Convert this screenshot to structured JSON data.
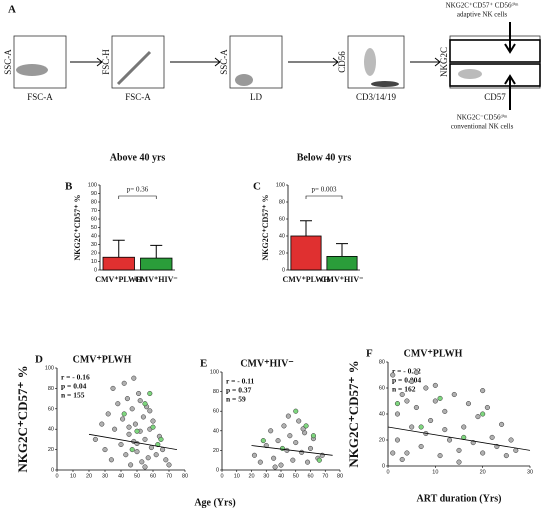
{
  "gating": {
    "label": "A",
    "plots": [
      {
        "x_label": "FSC-A",
        "y_label": "SSC-A"
      },
      {
        "x_label": "FSC-A",
        "y_label": "FSC-H"
      },
      {
        "x_label": "LD",
        "y_label": "SSC-A"
      },
      {
        "x_label": "CD3/14/19",
        "y_label": "CD56"
      },
      {
        "x_label": "CD57",
        "y_label": "NKG2C"
      }
    ],
    "annotations": [
      {
        "line1": "NKG2C⁺CD57⁺ CD56ᵈⁱᵐ",
        "line2": "adaptive NK cells"
      },
      {
        "line1": "NKG2C⁻CD56ᵈⁱᵐ",
        "line2": "conventional NK cells"
      }
    ]
  },
  "chart_data": [
    {
      "type": "bar",
      "label": "B",
      "title": "Above 40 yrs",
      "y_label": "NKG2C⁺CD57⁺ %",
      "categories": [
        "CMV⁺PLWH",
        "CMV⁺HIV⁻"
      ],
      "values": [
        15,
        14
      ],
      "errors": [
        20,
        15
      ],
      "colors": [
        "#e03030",
        "#2a9d3a"
      ],
      "annotation": "p= 0.36",
      "ylim": [
        0,
        100
      ],
      "yticks": [
        0,
        10,
        20,
        30,
        40,
        50,
        60,
        70,
        80,
        90,
        100
      ]
    },
    {
      "type": "bar",
      "label": "C",
      "title": "Below 40 yrs",
      "y_label": "NKG2C⁺CD57⁺ %",
      "categories": [
        "CMV⁺PLWH",
        "CMV⁺HIV⁻"
      ],
      "values": [
        40,
        16
      ],
      "errors": [
        18,
        15
      ],
      "colors": [
        "#e03030",
        "#2a9d3a"
      ],
      "annotation": "p= 0.003",
      "ylim": [
        0,
        100
      ],
      "yticks": [
        0,
        20,
        40,
        60,
        80,
        100
      ]
    },
    {
      "type": "scatter",
      "label": "D",
      "title": "CMV⁺PLWH",
      "y_label": "NKG2C⁺CD57⁺ %",
      "x_label": "Age (Yrs)",
      "annotations": [
        "r = - 0.16",
        "p = 0.04",
        "n = 155"
      ],
      "series": [
        {
          "color": "#b0b0b0",
          "x": [
            24,
            28,
            30,
            32,
            34,
            36,
            38,
            40,
            41,
            43,
            44,
            45,
            46,
            47,
            48,
            49,
            50,
            51,
            52,
            53,
            54,
            55,
            56,
            57,
            58,
            59,
            60,
            62,
            64,
            66,
            68,
            70,
            35,
            42,
            48,
            52,
            55,
            58,
            45,
            50
          ],
          "y": [
            30,
            45,
            20,
            55,
            10,
            40,
            65,
            25,
            50,
            15,
            70,
            35,
            5,
            60,
            28,
            45,
            18,
            75,
            38,
            8,
            52,
            30,
            62,
            12,
            40,
            22,
            48,
            15,
            33,
            20,
            10,
            5,
            80,
            85,
            90,
            68,
            3,
            58,
            42,
            26
          ]
        },
        {
          "color": "#7ed67e",
          "x": [
            42,
            50,
            55,
            60,
            63,
            65,
            58,
            47
          ],
          "y": [
            55,
            38,
            65,
            42,
            25,
            30,
            75,
            20
          ]
        }
      ],
      "trend": {
        "x": [
          20,
          75
        ],
        "y": [
          35,
          20
        ]
      },
      "xlim": [
        0,
        80
      ],
      "xticks": [
        0,
        10,
        20,
        30,
        40,
        50,
        60,
        70,
        80
      ],
      "ylim": [
        0,
        100
      ],
      "yticks": [
        0,
        20,
        40,
        60,
        80,
        100
      ]
    },
    {
      "type": "scatter",
      "label": "E",
      "title": "CMV⁺HIV⁻",
      "annotations": [
        "r = - 0.11",
        "p = 0.37",
        "n = 59"
      ],
      "series": [
        {
          "color": "#b0b0b0",
          "x": [
            22,
            26,
            30,
            33,
            35,
            38,
            40,
            42,
            44,
            46,
            48,
            50,
            52,
            54,
            56,
            58,
            60,
            62,
            65,
            68,
            36,
            45,
            55
          ],
          "y": [
            15,
            8,
            25,
            40,
            12,
            30,
            5,
            45,
            20,
            35,
            10,
            28,
            50,
            18,
            38,
            8,
            22,
            32,
            12,
            15,
            3,
            55,
            42
          ]
        },
        {
          "color": "#7ed67e",
          "x": [
            28,
            41,
            50,
            57,
            62,
            66
          ],
          "y": [
            30,
            22,
            60,
            45,
            35,
            10
          ]
        }
      ],
      "trend": {
        "x": [
          20,
          75
        ],
        "y": [
          25,
          15
        ]
      },
      "xlim": [
        0,
        80
      ],
      "xticks": [
        0,
        10,
        20,
        30,
        40,
        50,
        60,
        70,
        80
      ],
      "ylim": [
        0,
        100
      ],
      "yticks": [
        0,
        20,
        40,
        60,
        80,
        100
      ]
    },
    {
      "type": "scatter",
      "label": "F",
      "title": "CMV⁺PLWH",
      "y_label": "NKG2C⁺CD57⁺ %",
      "x_label": "ART duration (Yrs)",
      "annotations": [
        "r = - 0.22",
        "p = 0.004",
        "n = 162"
      ],
      "series": [
        {
          "color": "#b0b0b0",
          "x": [
            1,
            2,
            2,
            3,
            4,
            5,
            5,
            6,
            7,
            8,
            8,
            9,
            10,
            11,
            12,
            13,
            14,
            15,
            16,
            17,
            18,
            19,
            20,
            21,
            22,
            23,
            24,
            25,
            26,
            27,
            3,
            6,
            10,
            15,
            20,
            1,
            4,
            12
          ],
          "y": [
            70,
            40,
            20,
            55,
            10,
            65,
            30,
            45,
            15,
            60,
            25,
            35,
            50,
            8,
            42,
            20,
            55,
            12,
            30,
            48,
            18,
            38,
            10,
            45,
            22,
            15,
            32,
            8,
            20,
            12,
            5,
            72,
            62,
            3,
            58,
            10,
            50,
            28
          ]
        },
        {
          "color": "#7ed67e",
          "x": [
            2,
            7,
            11,
            16,
            20
          ],
          "y": [
            48,
            30,
            52,
            22,
            40
          ]
        }
      ],
      "trend": {
        "x": [
          0,
          30
        ],
        "y": [
          30,
          12
        ]
      },
      "xlim": [
        0,
        30
      ],
      "xticks": [
        0,
        10,
        20,
        30
      ],
      "ylim": [
        0,
        80
      ],
      "yticks": [
        0,
        20,
        40,
        60,
        80
      ]
    }
  ]
}
